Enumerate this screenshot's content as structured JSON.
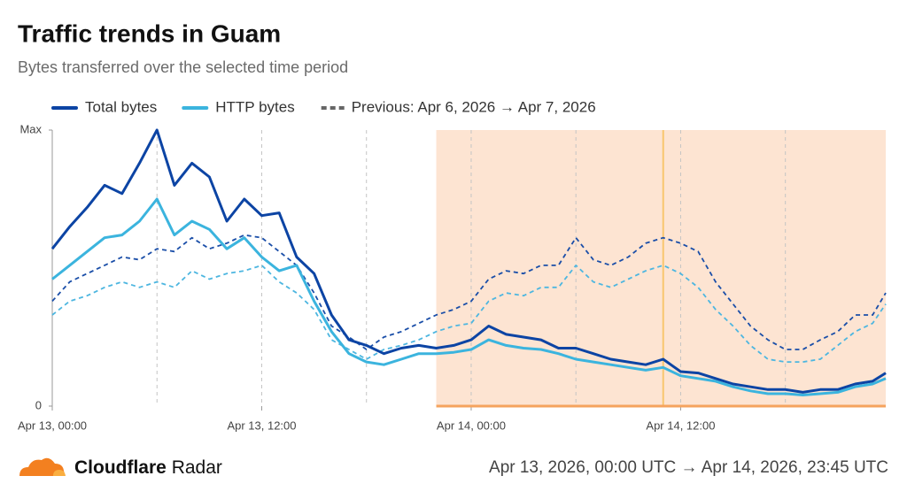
{
  "chart_data": {
    "type": "line",
    "title": "Traffic trends in Guam",
    "subtitle": "Bytes transferred over the selected time period",
    "x": [
      0,
      1,
      2,
      3,
      4,
      5,
      6,
      7,
      8,
      9,
      10,
      11,
      12,
      13,
      14,
      15,
      16,
      17,
      18,
      19,
      20,
      21,
      22,
      23,
      24,
      25,
      26,
      27,
      28,
      29,
      30,
      31,
      32,
      33,
      34,
      35,
      36,
      37,
      38,
      39,
      40,
      41,
      42,
      43,
      44,
      45,
      46,
      47,
      47.75
    ],
    "xlim": [
      0,
      47.75
    ],
    "xticks": [
      {
        "value": 0,
        "label": "Apr 13, 00:00"
      },
      {
        "value": 12,
        "label": "Apr 13, 12:00"
      },
      {
        "value": 24,
        "label": "Apr 14, 00:00"
      },
      {
        "value": 36,
        "label": "Apr 14, 12:00"
      }
    ],
    "xgrid": [
      6,
      12,
      18,
      24,
      30,
      36,
      42
    ],
    "ylim": [
      0,
      100
    ],
    "yticks": [
      0,
      {
        "value": 100,
        "label": "Max"
      }
    ],
    "highlight": [
      22,
      47.75
    ],
    "highlight_color": "#fde4d2",
    "highlight_base_color": "#f5a35e",
    "marker_x": 35,
    "marker_color": "#f9c66e",
    "previous_label": "Previous: Apr 6, 2026 → Apr 7, 2026",
    "series": [
      {
        "name": "Total bytes",
        "color": "#0c44a4",
        "dashed": false,
        "values": [
          57,
          65,
          72,
          80,
          77,
          88,
          100,
          80,
          88,
          83,
          67,
          75,
          69,
          70,
          54,
          48,
          33,
          24,
          22,
          19,
          21,
          22,
          21,
          22,
          24,
          29,
          26,
          25,
          24,
          21,
          21,
          19,
          17,
          16,
          15,
          17,
          12.5,
          12,
          10,
          8,
          7,
          6,
          6,
          5,
          6,
          6,
          8,
          9,
          12
        ]
      },
      {
        "name": "HTTP bytes",
        "color": "#3bb4de",
        "dashed": false,
        "values": [
          46,
          51,
          56,
          61,
          62,
          67,
          75,
          62,
          67,
          64,
          57,
          61,
          54,
          49,
          51,
          38,
          27,
          19,
          16,
          15,
          17,
          19,
          19,
          19.5,
          20.5,
          24,
          22,
          21,
          20.5,
          19,
          17,
          16,
          15,
          14,
          13,
          14,
          11,
          10,
          9,
          7,
          5.5,
          4.5,
          4.5,
          4,
          4.5,
          5,
          7,
          8,
          10
        ]
      },
      {
        "color": "#1a4ea8",
        "dashed": true,
        "values": [
          38,
          45,
          48,
          51,
          54,
          53,
          57,
          56,
          61,
          57,
          59,
          62,
          61,
          56,
          51,
          41,
          29,
          25,
          20.5,
          25,
          27,
          30,
          33,
          35,
          38,
          46,
          49,
          48,
          51,
          51,
          61,
          53,
          51,
          54,
          59,
          61,
          59,
          56,
          45,
          37,
          29,
          24,
          20.5,
          20.5,
          24,
          27,
          33,
          33,
          41
        ]
      },
      {
        "color": "#4db6e0",
        "dashed": true,
        "values": [
          33,
          38,
          40,
          43,
          45,
          43,
          45,
          43,
          49,
          46,
          48,
          49,
          51,
          45,
          41,
          35,
          24,
          20.5,
          17,
          20.5,
          22,
          24,
          27,
          29,
          30,
          38,
          41,
          40,
          43,
          43,
          51,
          45,
          43,
          46,
          49,
          51,
          48,
          43,
          35,
          29,
          22,
          17,
          16,
          16,
          17,
          22,
          27,
          30,
          37
        ]
      }
    ]
  },
  "footer": {
    "brand": "Cloudflare",
    "product": "Radar",
    "range": "Apr 13, 2026, 00:00 UTC → Apr 14, 2026, 23:45 UTC"
  }
}
